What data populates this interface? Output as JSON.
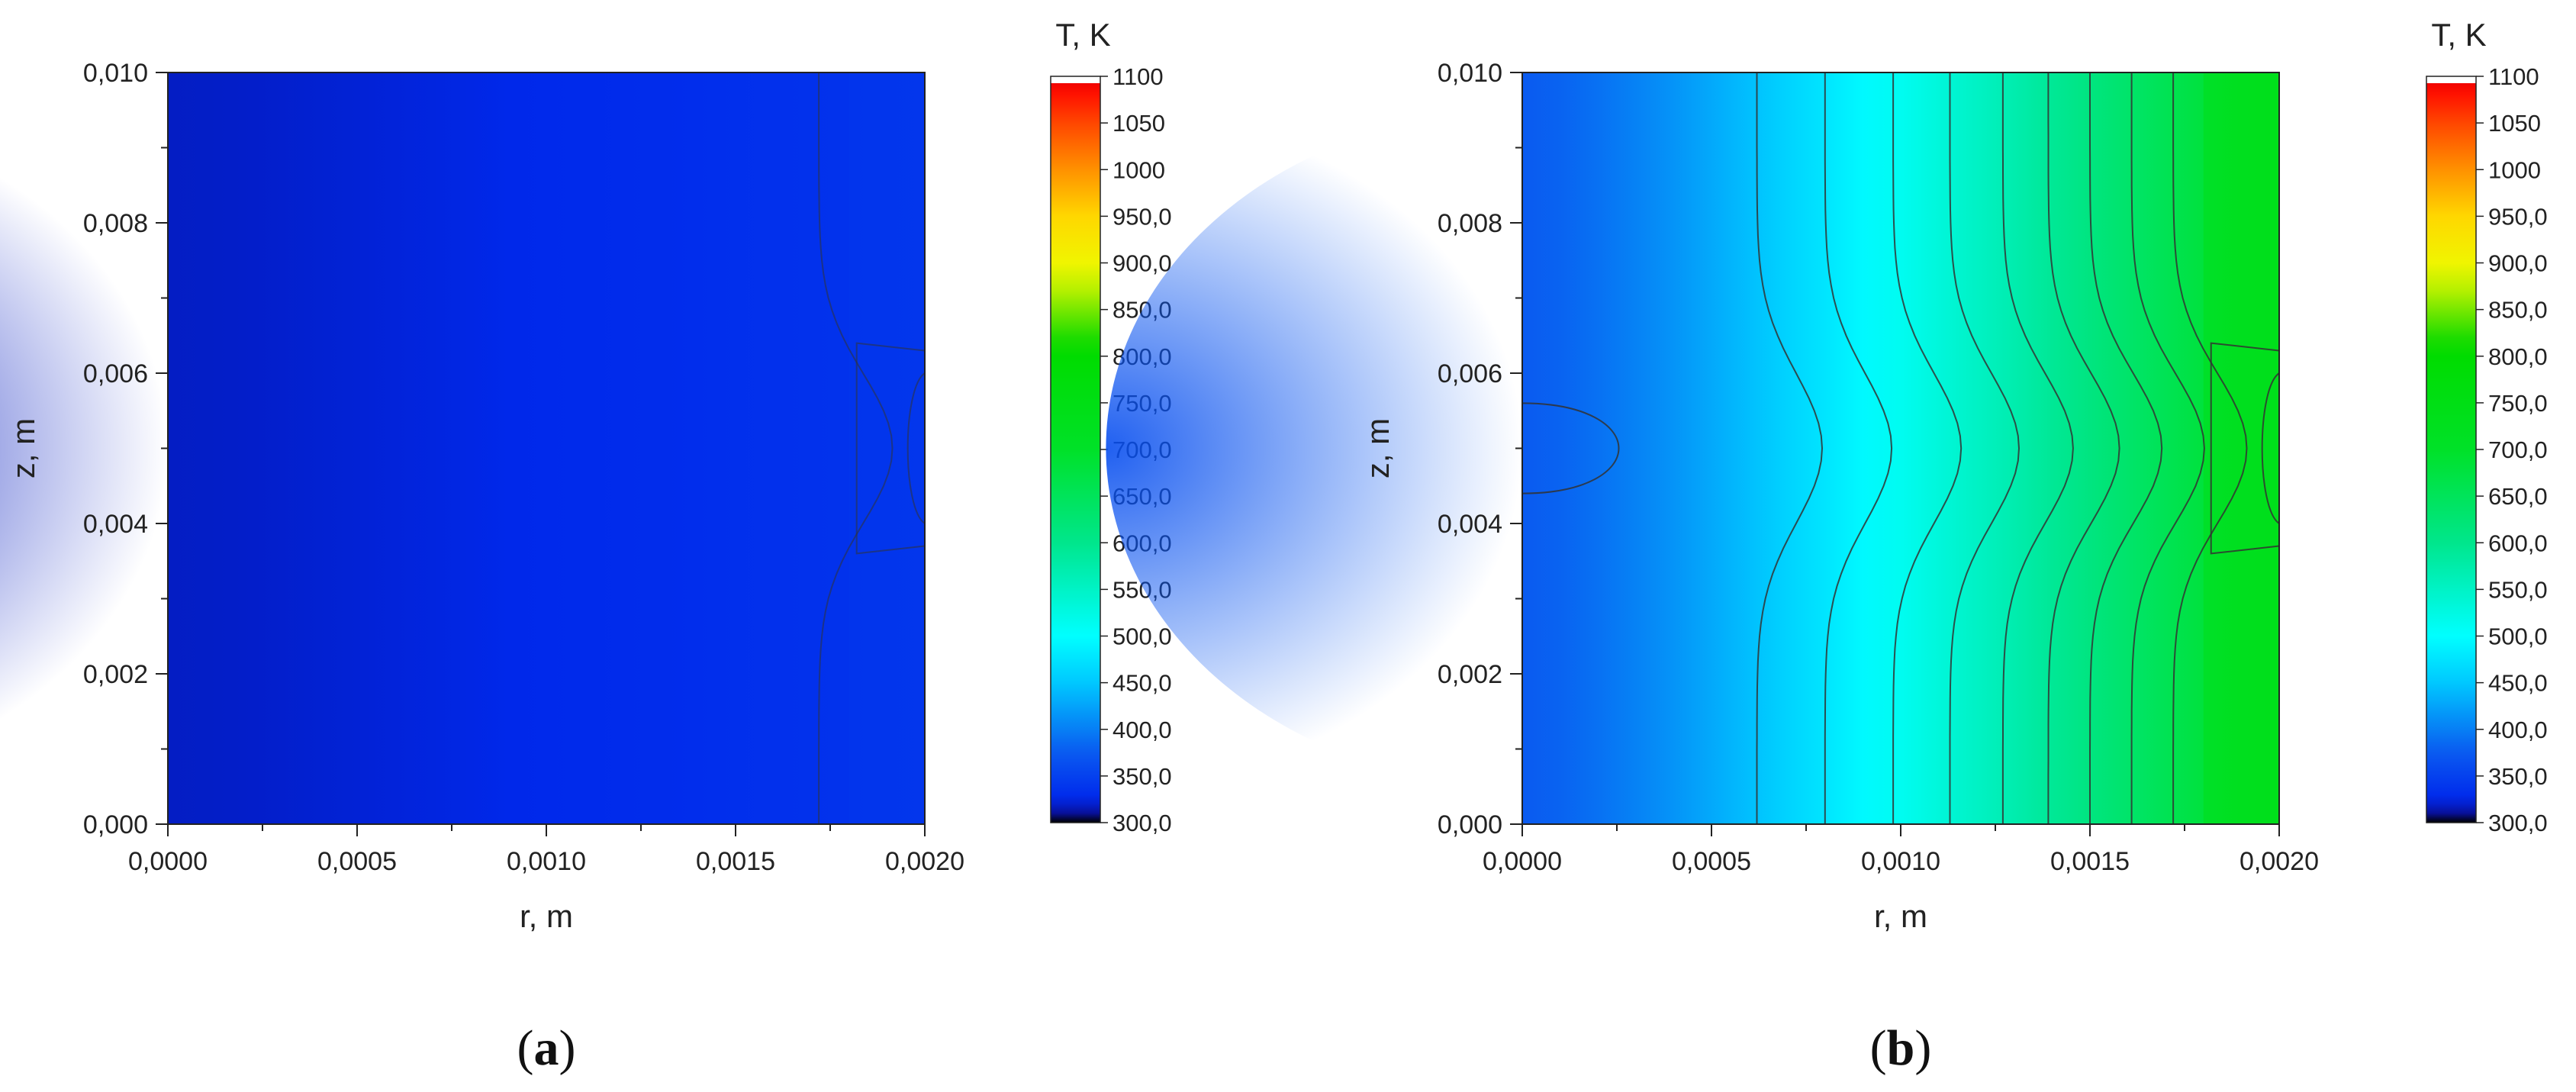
{
  "chart_data": [
    {
      "type": "heatmap",
      "panel_label": "a",
      "xlabel": "r, m",
      "ylabel": "z, m",
      "xlim": [
        0,
        0.002
      ],
      "ylim": [
        0,
        0.01
      ],
      "x_ticks": [
        "0,0000",
        "0,0005",
        "0,0010",
        "0,0015",
        "0,0020"
      ],
      "y_ticks": [
        "0,000",
        "0,002",
        "0,004",
        "0,006",
        "0,008",
        "0,010"
      ],
      "colorbar": {
        "title": "T, K",
        "range": [
          300,
          1100
        ],
        "tick_labels": [
          "1100",
          "1050",
          "1000",
          "950,0",
          "900,0",
          "850,0",
          "800,0",
          "750,0",
          "700,0",
          "650,0",
          "600,0",
          "550,0",
          "500,0",
          "450,0",
          "400,0",
          "350,0",
          "300,0"
        ],
        "tick_values": [
          1100,
          1050,
          1000,
          950,
          900,
          850,
          800,
          750,
          700,
          650,
          600,
          550,
          500,
          450,
          400,
          350,
          300
        ]
      },
      "field": {
        "T_center_r0": 318,
        "T_edge_r_max": 338,
        "core_z_range": [
          0.0036,
          0.0064
        ]
      },
      "contour_lines_r_at_edges": [
        0.00172
      ],
      "grid": false,
      "legend": "colorbar-right"
    },
    {
      "type": "heatmap",
      "panel_label": "b",
      "xlabel": "r, m",
      "ylabel": "z, m",
      "xlim": [
        0,
        0.002
      ],
      "ylim": [
        0,
        0.01
      ],
      "x_ticks": [
        "0,0000",
        "0,0005",
        "0,0010",
        "0,0015",
        "0,0020"
      ],
      "y_ticks": [
        "0,000",
        "0,002",
        "0,004",
        "0,006",
        "0,008",
        "0,010"
      ],
      "colorbar": {
        "title": "T, K",
        "range": [
          300,
          1100
        ],
        "tick_labels": [
          "1100",
          "1050",
          "1000",
          "950,0",
          "900,0",
          "850,0",
          "800,0",
          "750,0",
          "700,0",
          "650,0",
          "600,0",
          "550,0",
          "500,0",
          "450,0",
          "400,0",
          "350,0",
          "300,0"
        ],
        "tick_values": [
          1100,
          1050,
          1000,
          950,
          900,
          850,
          800,
          750,
          700,
          650,
          600,
          550,
          500,
          450,
          400,
          350,
          300
        ]
      },
      "field": {
        "T_center_r0": 375,
        "T_edge_r_max": 725,
        "core_z_range": [
          0.0036,
          0.0064
        ]
      },
      "contour_lines_r_at_edges": [
        0.00062,
        0.0008,
        0.00098,
        0.00113,
        0.00127,
        0.00139,
        0.0015,
        0.00161,
        0.00172
      ],
      "grid": false,
      "legend": "colorbar-right"
    }
  ]
}
